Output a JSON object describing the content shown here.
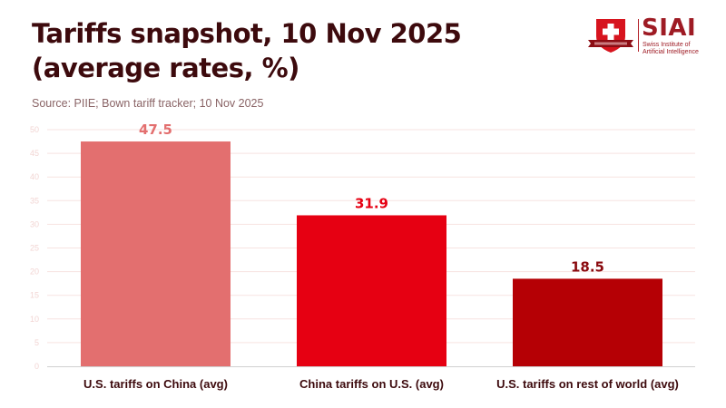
{
  "header": {
    "title_line1": "Tariffs snapshot, 10 Nov 2025",
    "title_line2": "(average rates, %)",
    "source": "Source: PIIE; Bown tariff tracker; 10 Nov 2025"
  },
  "logo": {
    "brand": "SIAI",
    "subtitle_line1": "Swiss Institute of",
    "subtitle_line2": "Artificial Intelligence",
    "icon": "shield-cross-icon"
  },
  "colors": {
    "title": "#3d0a0d",
    "grid": "#f7e3e1",
    "axis": "#d0d0d0",
    "bar1": "#e36f6f",
    "bar2": "#e60012",
    "bar3": "#b50005"
  },
  "chart_data": {
    "type": "bar",
    "title": "Tariffs snapshot, 10 Nov 2025 (average rates, %)",
    "subtitle": "Source: PIIE; Bown tariff tracker; 10 Nov 2025",
    "categories": [
      "U.S. tariffs on China (avg)",
      "China tariffs on U.S. (avg)",
      "U.S. tariffs on rest of world (avg)"
    ],
    "values": [
      47.5,
      31.9,
      18.5
    ],
    "value_labels": [
      "47.5",
      "31.9",
      "18.5"
    ],
    "bar_colors": [
      "#e36f6f",
      "#e60012",
      "#b50005"
    ],
    "label_colors": [
      "#e36f6f",
      "#e60012",
      "#8a0a0f"
    ],
    "xlabel": "",
    "ylabel": "",
    "ylim": [
      0,
      50
    ],
    "yticks": [
      0,
      5,
      10,
      15,
      20,
      25,
      30,
      35,
      40,
      45,
      50
    ],
    "grid": true,
    "legend": "none"
  }
}
